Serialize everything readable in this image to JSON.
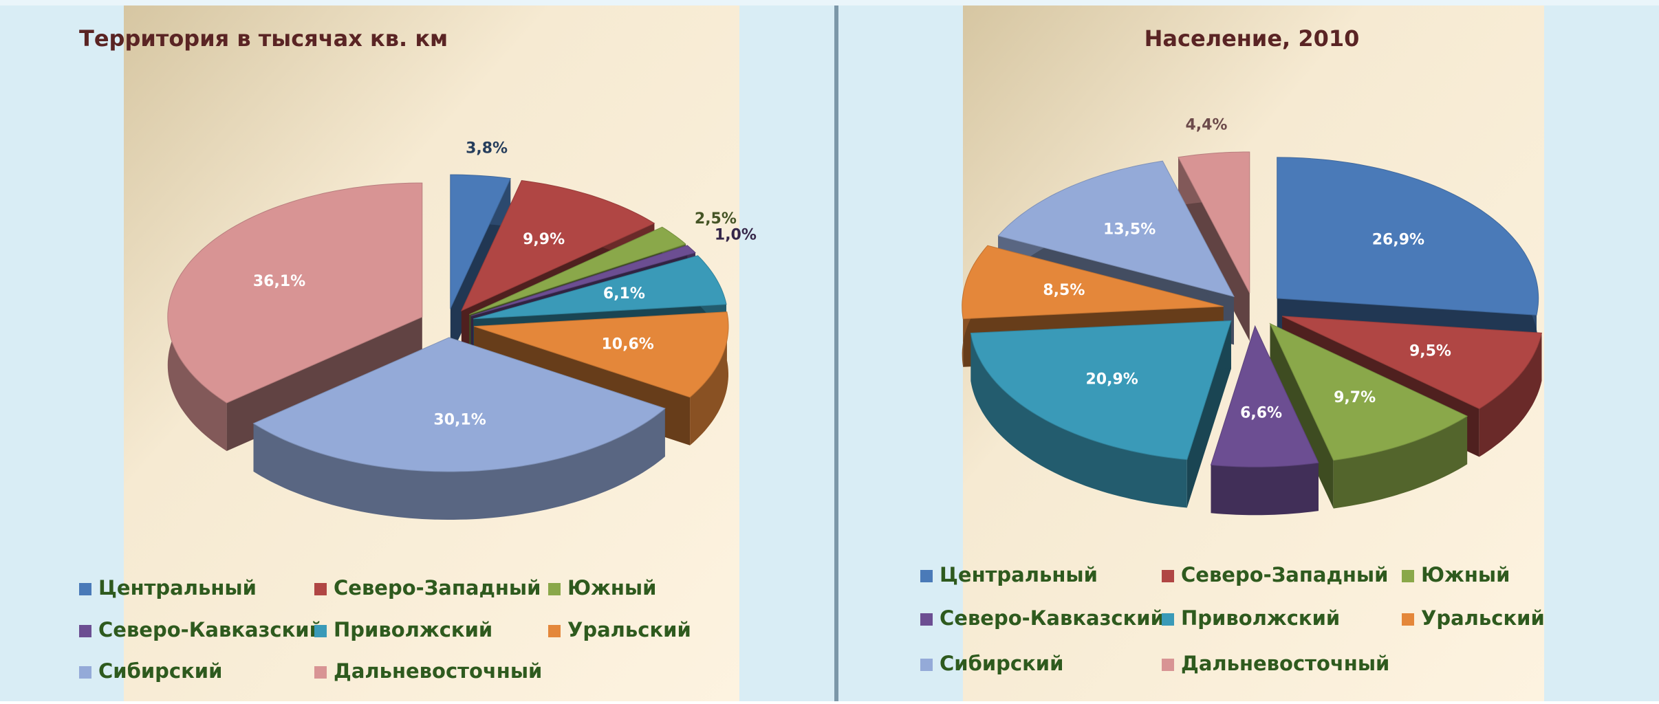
{
  "chart_data": [
    {
      "type": "pie",
      "title": "Территория в тысячах кв. км",
      "categories": [
        "Центральный",
        "Северо-Западный",
        "Южный",
        "Северо-Кавказский",
        "Приволжский",
        "Уральский",
        "Сибирский",
        "Дальневосточный"
      ],
      "values": [
        3.8,
        9.9,
        2.5,
        1.0,
        6.1,
        10.6,
        30.1,
        36.1
      ],
      "value_labels": [
        "3,8%",
        "9,9%",
        "2,5%",
        "1,0%",
        "6,1%",
        "10,6%",
        "30,1%",
        "36,1%"
      ],
      "colors": [
        "#4a7ab8",
        "#b04644",
        "#8aa84a",
        "#6c4e92",
        "#3a9ab8",
        "#e4873a",
        "#94aad8",
        "#d89494"
      ]
    },
    {
      "type": "pie",
      "title": "Население, 2010",
      "categories": [
        "Центральный",
        "Северо-Западный",
        "Южный",
        "Северо-Кавказский",
        "Приволжский",
        "Уральский",
        "Сибирский",
        "Дальневосточный"
      ],
      "values": [
        26.9,
        9.5,
        9.7,
        6.6,
        20.9,
        8.5,
        13.5,
        4.4
      ],
      "value_labels": [
        "26,9%",
        "9,5%",
        "9,7%",
        "6,6%",
        "20,9%",
        "8,5%",
        "13,5%",
        "4,4%"
      ],
      "colors": [
        "#4a7ab8",
        "#b04644",
        "#8aa84a",
        "#6c4e92",
        "#3a9ab8",
        "#e4873a",
        "#94aad8",
        "#d89494"
      ]
    }
  ]
}
